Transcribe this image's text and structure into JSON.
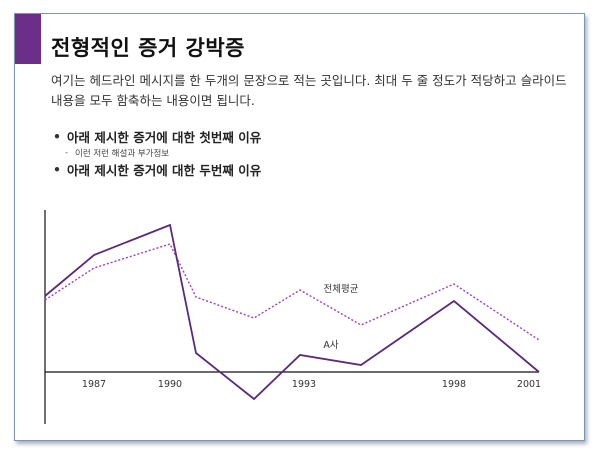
{
  "slide": {
    "title": "전형적인 증거 강박증",
    "description": "여기는 헤드라인 메시지를 한 두개의 문장으로 적는 곳입니다. 최대 두 줄 정도가 적당하고 슬라이드 내용을 모두 함축하는 내용이면 됩니다.",
    "bullets": [
      {
        "text": "아래 제시한 증거에 대한 첫번째 이유",
        "sub": "이런 저런 해설과 부가정보"
      },
      {
        "text": "아래 제시한 증거에 대한 두번째 이유"
      }
    ],
    "accent_color": "#6b2f8a"
  },
  "chart_data": {
    "type": "line",
    "x_tick_labels": [
      "1987",
      "1990",
      "1993",
      "1998",
      "2001"
    ],
    "grid": false,
    "series": [
      {
        "name": "전체평균",
        "style": "dotted",
        "color": "#9a3fc7",
        "values": [
          72,
          104,
          128,
          75,
          54,
          82,
          47,
          88,
          32
        ]
      },
      {
        "name": "A사",
        "style": "solid",
        "color": "#5b2a78",
        "values": [
          76,
          117,
          147,
          19,
          -27,
          17,
          7,
          71,
          0
        ]
      }
    ]
  }
}
